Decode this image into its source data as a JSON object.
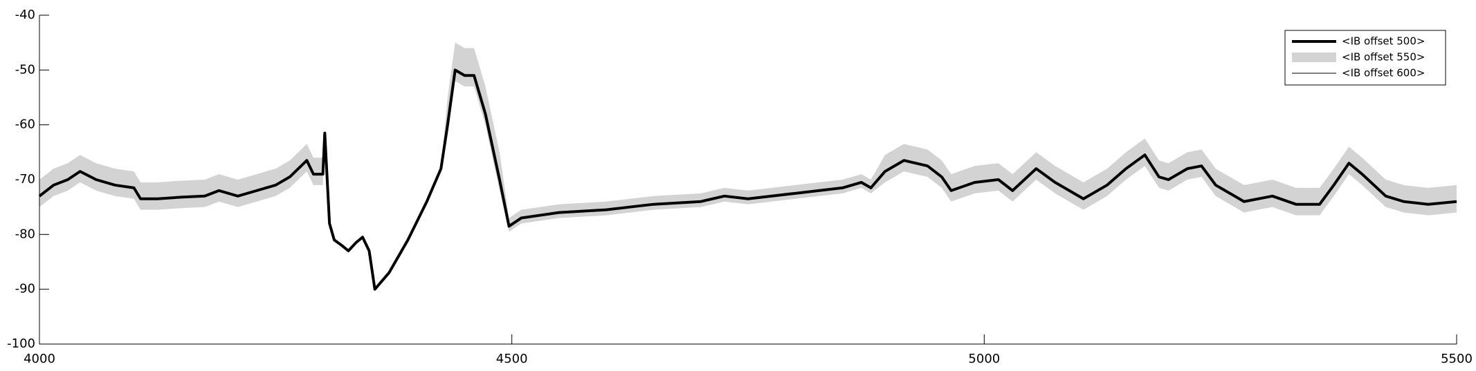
{
  "chart_data": {
    "type": "line",
    "x": [
      4000,
      4015,
      4030,
      4043,
      4060,
      4080,
      4100,
      4107,
      4125,
      4150,
      4175,
      4190,
      4210,
      4230,
      4250,
      4265,
      4283,
      4290,
      4300,
      4302,
      4307,
      4312,
      4320,
      4327,
      4335,
      4342,
      4349,
      4355,
      4370,
      4390,
      4410,
      4425,
      4432,
      4440,
      4450,
      4460,
      4472,
      4487,
      4497,
      4510,
      4550,
      4600,
      4650,
      4700,
      4725,
      4750,
      4800,
      4850,
      4870,
      4880,
      4895,
      4915,
      4940,
      4955,
      4965,
      4990,
      5015,
      5030,
      5055,
      5075,
      5105,
      5130,
      5150,
      5170,
      5185,
      5195,
      5215,
      5230,
      5245,
      5255,
      5275,
      5305,
      5330,
      5355,
      5370,
      5386,
      5400,
      5425,
      5444,
      5470,
      5500
    ],
    "series": [
      {
        "name": "<IB offset 550>",
        "color": "#d3d3d3",
        "upper": [
          -70,
          -68,
          -67,
          -65.5,
          -67,
          -68,
          -68.5,
          -70.5,
          -70.5,
          -70.2,
          -70,
          -69,
          -70,
          -69,
          -68,
          -66.5,
          -63.5,
          -66,
          -66,
          -61.5,
          -78,
          -81,
          -82,
          -83,
          -81.5,
          -80.5,
          -83,
          -90,
          -87,
          -81,
          -74,
          -68,
          -55,
          -45,
          -46,
          -46,
          -53,
          -65,
          -77,
          -75.5,
          -74.5,
          -74,
          -73,
          -72.5,
          -71.5,
          -72,
          -71,
          -70,
          -69,
          -70,
          -65.5,
          -63.5,
          -64.5,
          -66.5,
          -69,
          -67.5,
          -67,
          -69,
          -65,
          -67.5,
          -70.5,
          -68,
          -65,
          -62.5,
          -66.5,
          -67,
          -65,
          -64.5,
          -68,
          -69,
          -71,
          -70,
          -71.5,
          -71.5,
          -68,
          -64,
          -66,
          -70,
          -71,
          -71.5,
          -71
        ],
        "lower": [
          -75,
          -73,
          -72,
          -70.5,
          -72,
          -73,
          -73.5,
          -75.5,
          -75.5,
          -75.2,
          -75,
          -74,
          -75,
          -74,
          -73,
          -71.5,
          -68.5,
          -71,
          -71,
          -61.5,
          -78,
          -81,
          -82,
          -83,
          -81.5,
          -80.5,
          -83,
          -90,
          -87,
          -81,
          -74,
          -68,
          -62,
          -52,
          -53,
          -53,
          -60,
          -72,
          -79.5,
          -78,
          -77,
          -76.5,
          -75.5,
          -75,
          -74,
          -74.5,
          -73.5,
          -72.5,
          -71.5,
          -72.5,
          -70.5,
          -68.5,
          -69.5,
          -71.5,
          -74,
          -72.5,
          -72,
          -74,
          -70,
          -72.5,
          -75.5,
          -73,
          -70,
          -67.5,
          -71.5,
          -72,
          -70,
          -69.5,
          -73,
          -74,
          -76,
          -75,
          -76.5,
          -76.5,
          -73,
          -69,
          -71,
          -75,
          -76,
          -76.5,
          -76
        ]
      },
      {
        "name": "<IB offset 500>",
        "color": "#000000",
        "values": [
          -73,
          -71,
          -70,
          -68.5,
          -70,
          -71,
          -71.5,
          -73.5,
          -73.5,
          -73.2,
          -73,
          -72,
          -73,
          -72,
          -71,
          -69.5,
          -66.5,
          -69,
          -69,
          -61.5,
          -78,
          -81,
          -82,
          -83,
          -81.5,
          -80.5,
          -83,
          -90,
          -87,
          -81,
          -74,
          -68,
          -60,
          -50,
          -51,
          -51,
          -58,
          -70,
          -78.5,
          -77,
          -76,
          -75.5,
          -74.5,
          -74,
          -73,
          -73.5,
          -72.5,
          -71.5,
          -70.5,
          -71.5,
          -68.5,
          -66.5,
          -67.5,
          -69.5,
          -72,
          -70.5,
          -70,
          -72,
          -68,
          -70.5,
          -73.5,
          -71,
          -68,
          -65.5,
          -69.5,
          -70,
          -68,
          -67.5,
          -71,
          -72,
          -74,
          -73,
          -74.5,
          -74.5,
          -71,
          -67,
          -69,
          -73,
          -74,
          -74.5,
          -74
        ]
      },
      {
        "name": "<IB offset 600>",
        "color": "#000000",
        "values": [
          -73,
          -71,
          -70,
          -68.5,
          -70,
          -71,
          -71.5,
          -73.5,
          -73.5,
          -73.2,
          -73,
          -72,
          -73,
          -72,
          -71,
          -69.5,
          -66.5,
          -69,
          -69,
          -61.5,
          -78,
          -81,
          -82,
          -83,
          -81.5,
          -80.5,
          -83,
          -90,
          -87,
          -81,
          -74,
          -68,
          -60,
          -50,
          -51,
          -51,
          -58,
          -70,
          -78.5,
          -77,
          -76,
          -75.5,
          -74.5,
          -74,
          -73,
          -73.5,
          -72.5,
          -71.5,
          -70.5,
          -71.5,
          -68.5,
          -66.5,
          -67.5,
          -69.5,
          -72,
          -70.5,
          -70,
          -72,
          -68,
          -70.5,
          -73.5,
          -71,
          -68,
          -65.5,
          -69.5,
          -70,
          -68,
          -67.5,
          -71,
          -72,
          -74,
          -73,
          -74.5,
          -74.5,
          -71,
          -67,
          -69,
          -73,
          -74,
          -74.5,
          -74
        ]
      }
    ],
    "xlim": [
      4000,
      5500
    ],
    "xticks": [
      4000,
      4500,
      5000,
      5500
    ],
    "ylim": [
      -100,
      -40
    ],
    "yticks": [
      -100,
      -90,
      -80,
      -70,
      -60,
      -50,
      -40
    ],
    "legend": "upper-right"
  }
}
